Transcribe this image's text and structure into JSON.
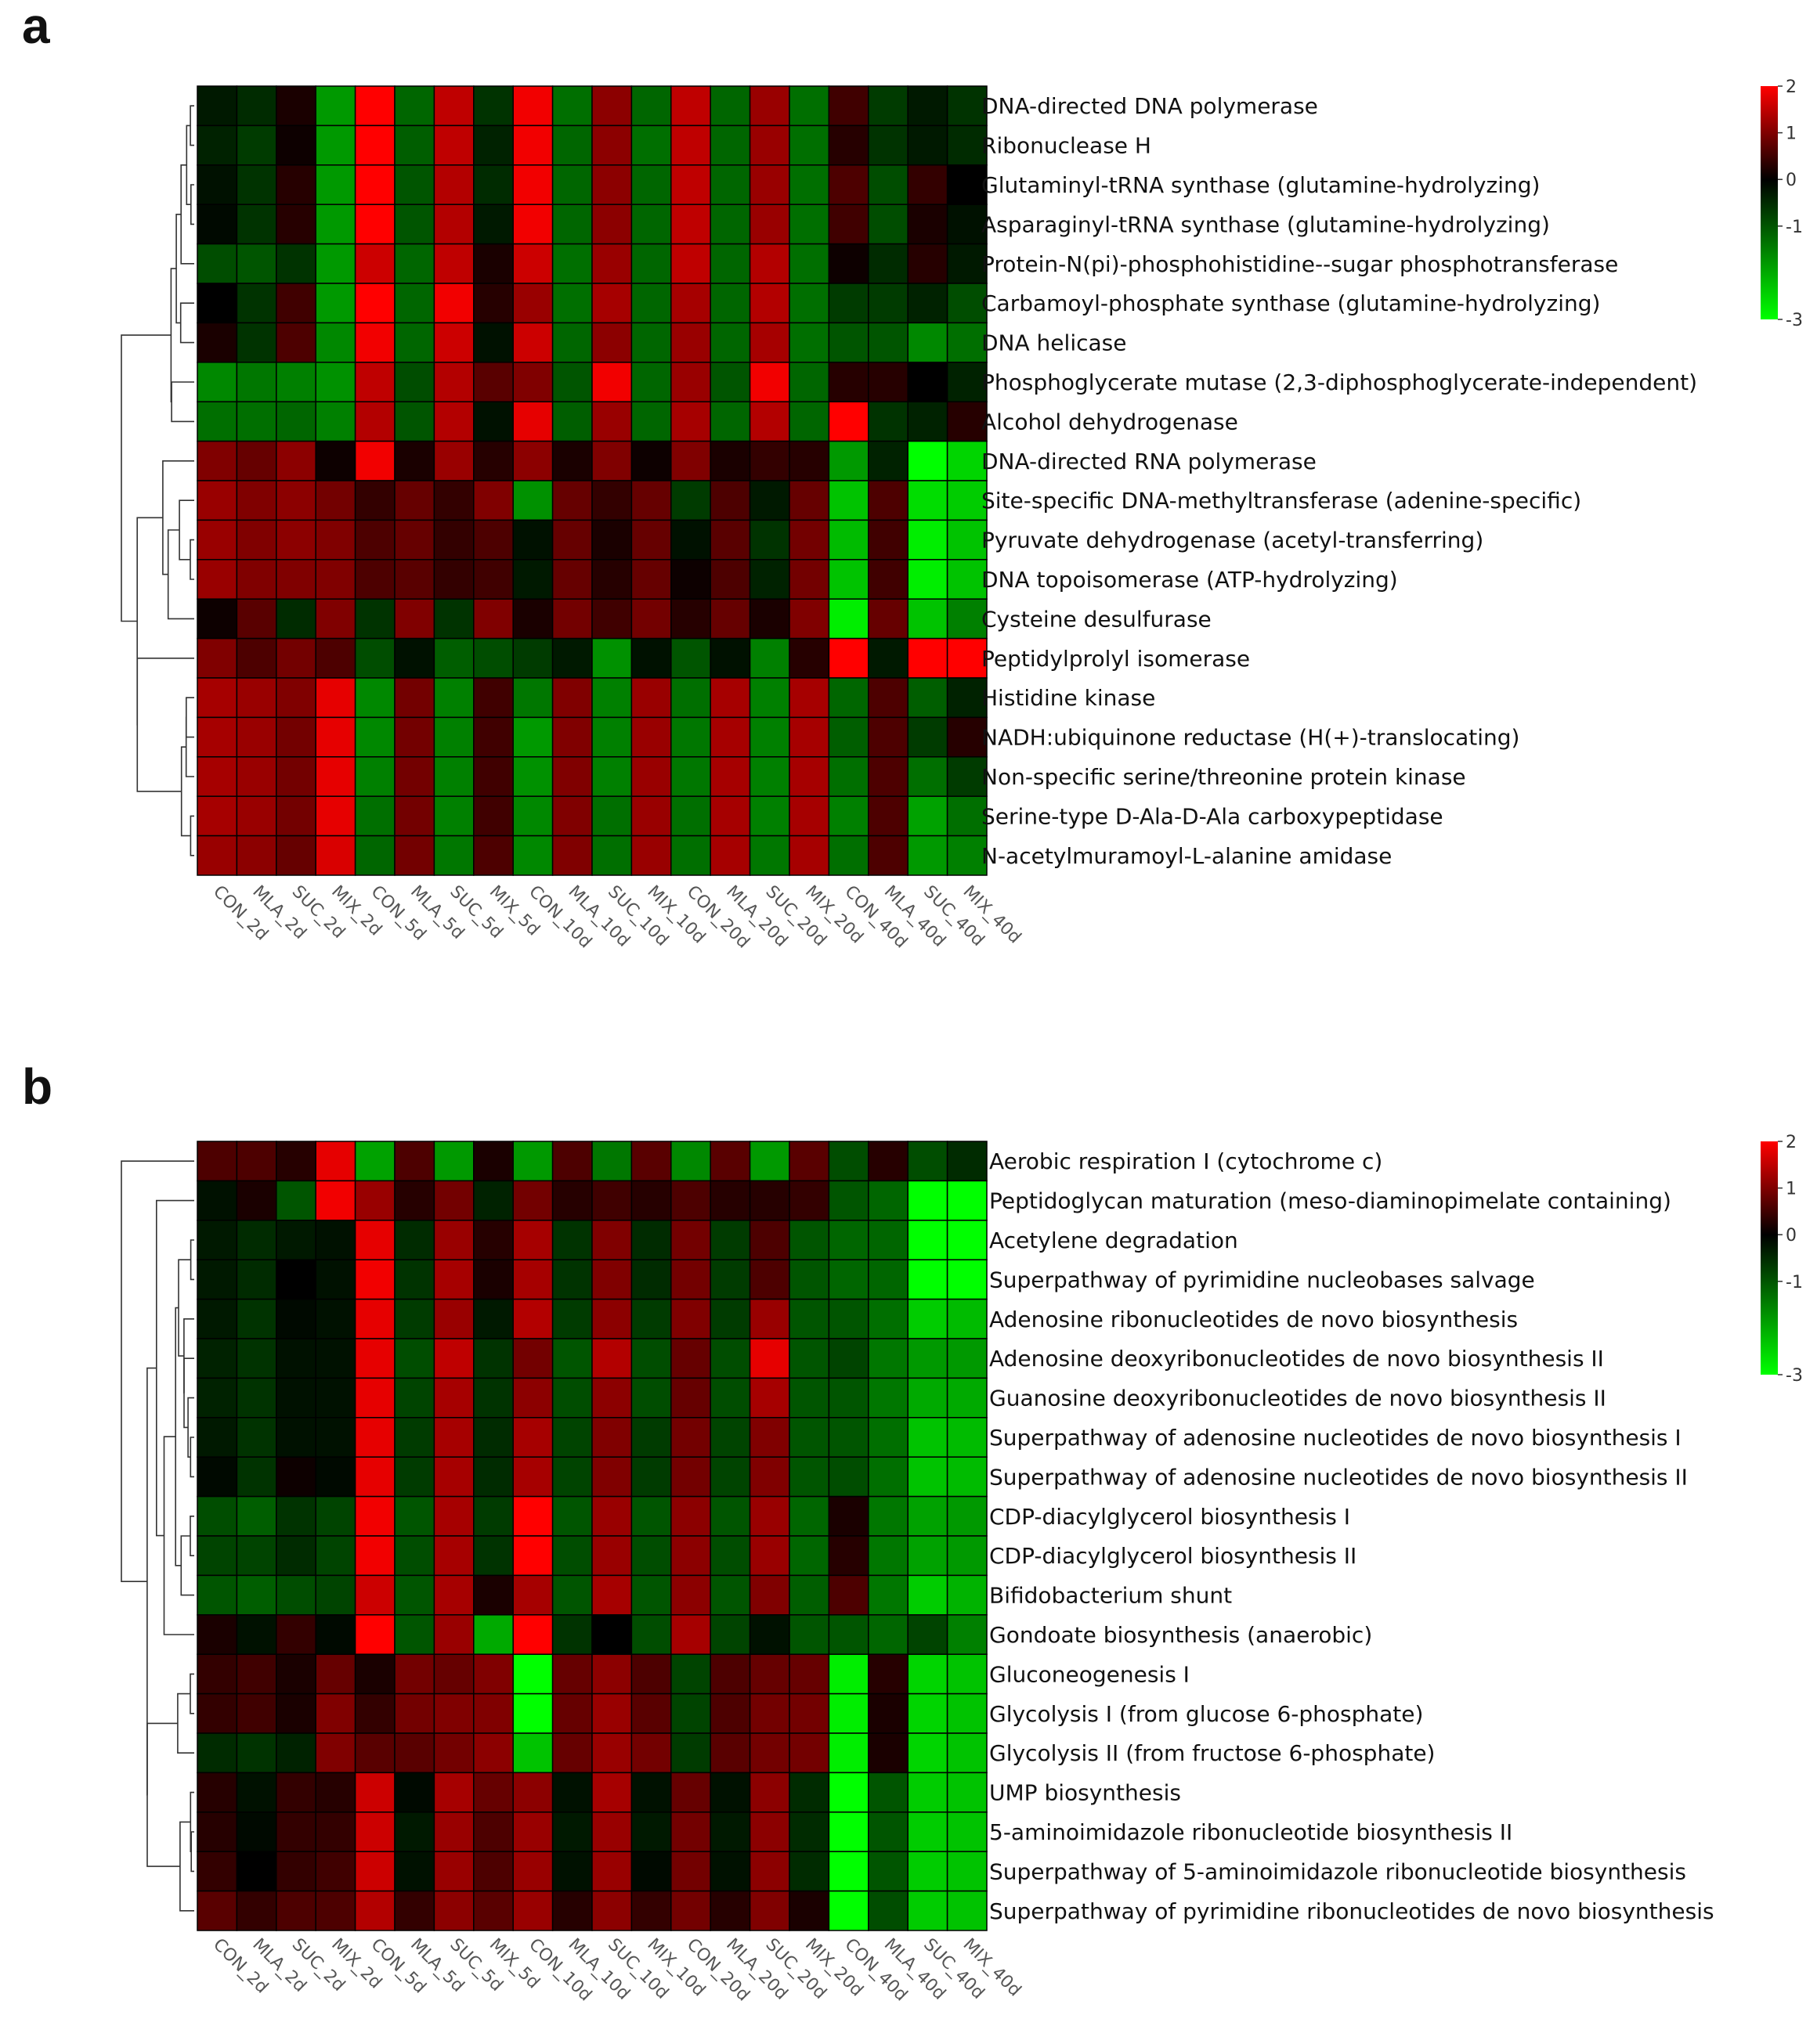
{
  "chart_data": [
    {
      "panel": "a",
      "type": "heatmap",
      "color_scale": {
        "min": -3,
        "max": 2,
        "ticks": [
          2,
          1,
          0,
          -1,
          -3
        ],
        "colors": {
          "low": "#00ff00",
          "mid": "#000000",
          "high": "#ff0000"
        }
      },
      "columns": [
        "CON_2d",
        "MLA_2d",
        "SUC_2d",
        "MIX_2d",
        "CON_5d",
        "MLA_5d",
        "SUC_5d",
        "MIX_5d",
        "CON_10d",
        "MLA_10d",
        "SUC_10d",
        "MIX_10d",
        "CON_20d",
        "MLA_20d",
        "SUC_20d",
        "MIX_20d",
        "CON_40d",
        "MLA_40d",
        "SUC_40d",
        "MIX_40d"
      ],
      "rows": [
        "DNA-directed DNA polymerase",
        "Ribonuclease H",
        "Glutaminyl-tRNA synthase (glutamine-hydrolyzing)",
        "Asparaginyl-tRNA synthase (glutamine-hydrolyzing)",
        "Protein-N(pi)-phosphohistidine--sugar phosphotransferase",
        "Carbamoyl-phosphate synthase (glutamine-hydrolyzing)",
        "DNA helicase",
        "Phosphoglycerate mutase (2,3-diphosphoglycerate-independent)",
        "Alcohol dehydrogenase",
        "DNA-directed RNA polymerase",
        "Site-specific DNA-methyltransferase (adenine-specific)",
        "Pyruvate dehydrogenase (acetyl-transferring)",
        "DNA topoisomerase (ATP-hydrolyzing)",
        "Cysteine desulfurase",
        "Peptidylprolyl isomerase",
        "Histidine kinase",
        "NADH:ubiquinone reductase (H(+)-translocating)",
        "Non-specific serine/threonine protein kinase",
        "Serine-type D-Ala-D-Ala carboxypeptidase",
        "N-acetylmuramoyl-L-alanine amidase"
      ],
      "values": [
        [
          -0.3,
          -0.5,
          0.2,
          -1.8,
          2.0,
          -1.2,
          1.5,
          -0.6,
          1.9,
          -1.3,
          1.1,
          -1.2,
          1.5,
          -1.2,
          1.2,
          -1.3,
          0.5,
          -0.7,
          -0.3,
          -0.6
        ],
        [
          -0.4,
          -0.7,
          0.1,
          -1.8,
          2.0,
          -1.1,
          1.5,
          -0.4,
          1.9,
          -1.2,
          1.1,
          -1.3,
          1.5,
          -1.2,
          1.2,
          -1.3,
          0.3,
          -0.6,
          -0.3,
          -0.5
        ],
        [
          -0.2,
          -0.6,
          0.3,
          -1.8,
          2.0,
          -1.0,
          1.4,
          -0.5,
          1.9,
          -1.2,
          1.1,
          -1.2,
          1.5,
          -1.2,
          1.2,
          -1.3,
          0.6,
          -0.9,
          0.4,
          0.0
        ],
        [
          -0.1,
          -0.6,
          0.3,
          -1.8,
          2.0,
          -1.0,
          1.4,
          -0.3,
          1.9,
          -1.2,
          1.1,
          -1.2,
          1.5,
          -1.2,
          1.2,
          -1.3,
          0.5,
          -0.9,
          0.2,
          -0.2
        ],
        [
          -0.9,
          -1.0,
          -0.6,
          -1.8,
          1.6,
          -1.2,
          1.5,
          0.2,
          1.6,
          -1.3,
          1.2,
          -1.2,
          1.5,
          -1.2,
          1.4,
          -1.3,
          0.1,
          -0.5,
          0.3,
          -0.3
        ],
        [
          0.0,
          -0.6,
          0.5,
          -1.8,
          2.0,
          -1.2,
          1.9,
          0.3,
          1.2,
          -1.3,
          1.3,
          -1.2,
          1.3,
          -1.2,
          1.4,
          -1.3,
          -0.7,
          -0.7,
          -0.4,
          -0.9
        ],
        [
          0.2,
          -0.6,
          0.6,
          -1.6,
          1.9,
          -1.2,
          1.6,
          -0.2,
          1.6,
          -1.2,
          1.1,
          -1.2,
          1.2,
          -1.2,
          1.3,
          -1.3,
          -1.0,
          -1.0,
          -1.6,
          -1.3
        ],
        [
          -1.6,
          -1.4,
          -1.5,
          -1.7,
          1.5,
          -0.9,
          1.4,
          0.7,
          1.0,
          -1.0,
          1.9,
          -1.2,
          1.2,
          -1.0,
          1.9,
          -1.2,
          0.3,
          0.3,
          0.0,
          -0.4
        ],
        [
          -1.3,
          -1.3,
          -1.2,
          -1.5,
          1.4,
          -1.0,
          1.4,
          -0.2,
          1.8,
          -1.1,
          1.2,
          -1.2,
          1.3,
          -1.2,
          1.4,
          -1.2,
          2.0,
          -0.6,
          -0.4,
          0.3
        ],
        [
          1.0,
          0.8,
          1.1,
          0.1,
          1.9,
          0.2,
          1.2,
          0.3,
          1.1,
          0.2,
          1.0,
          0.1,
          1.0,
          0.2,
          0.4,
          0.3,
          -1.8,
          -0.4,
          -3.0,
          -2.5
        ],
        [
          1.2,
          1.0,
          1.1,
          0.9,
          0.4,
          0.8,
          0.4,
          1.0,
          -1.7,
          0.8,
          0.4,
          0.8,
          -0.7,
          0.6,
          -0.3,
          0.8,
          -2.3,
          0.6,
          -2.6,
          -2.4
        ],
        [
          1.2,
          1.0,
          1.1,
          1.0,
          0.6,
          0.8,
          0.4,
          0.6,
          -0.2,
          0.8,
          0.2,
          0.8,
          -0.2,
          0.7,
          -0.6,
          0.9,
          -2.2,
          0.5,
          -2.8,
          -2.3
        ],
        [
          1.2,
          1.0,
          1.0,
          1.0,
          0.6,
          0.7,
          0.4,
          0.5,
          -0.3,
          0.8,
          0.3,
          0.8,
          0.1,
          0.6,
          -0.4,
          0.9,
          -2.3,
          0.5,
          -2.8,
          -2.3
        ],
        [
          0.1,
          0.7,
          -0.5,
          1.0,
          -0.6,
          1.0,
          -0.6,
          1.0,
          0.2,
          0.9,
          0.5,
          0.9,
          0.3,
          0.8,
          0.2,
          1.0,
          -2.8,
          0.8,
          -2.3,
          -1.5
        ],
        [
          1.0,
          0.6,
          0.9,
          0.6,
          -0.9,
          -0.2,
          -1.1,
          -0.9,
          -0.7,
          -0.3,
          -1.7,
          -0.2,
          -1.0,
          -0.2,
          -1.5,
          0.3,
          2.0,
          -0.3,
          2.0,
          2.0
        ],
        [
          1.3,
          1.2,
          1.0,
          1.8,
          -1.6,
          0.9,
          -1.5,
          0.5,
          -1.4,
          1.0,
          -1.5,
          1.2,
          -1.3,
          1.3,
          -1.5,
          1.3,
          -1.2,
          0.6,
          -1.1,
          -0.4
        ],
        [
          1.3,
          1.2,
          0.9,
          1.8,
          -1.6,
          0.9,
          -1.5,
          0.5,
          -1.8,
          1.0,
          -1.5,
          1.2,
          -1.4,
          1.3,
          -1.5,
          1.3,
          -1.1,
          0.6,
          -0.7,
          0.3
        ],
        [
          1.3,
          1.2,
          0.9,
          1.8,
          -1.5,
          0.9,
          -1.5,
          0.5,
          -1.7,
          1.0,
          -1.5,
          1.2,
          -1.4,
          1.3,
          -1.5,
          1.3,
          -1.3,
          0.6,
          -1.3,
          -0.7
        ],
        [
          1.3,
          1.2,
          0.9,
          1.8,
          -1.3,
          0.9,
          -1.5,
          0.5,
          -1.6,
          1.0,
          -1.3,
          1.2,
          -1.3,
          1.3,
          -1.5,
          1.3,
          -1.5,
          0.6,
          -1.9,
          -1.3
        ],
        [
          1.2,
          1.1,
          0.8,
          1.7,
          -1.2,
          0.9,
          -1.4,
          0.6,
          -1.6,
          1.0,
          -1.3,
          1.2,
          -1.3,
          1.3,
          -1.4,
          1.3,
          -1.3,
          0.6,
          -1.8,
          -1.5
        ]
      ]
    },
    {
      "panel": "b",
      "type": "heatmap",
      "color_scale": {
        "min": -3,
        "max": 2,
        "ticks": [
          2,
          1,
          0,
          -1,
          -3
        ],
        "colors": {
          "low": "#00ff00",
          "mid": "#000000",
          "high": "#ff0000"
        }
      },
      "columns": [
        "CON_2d",
        "MLA_2d",
        "SUC_2d",
        "MIX_2d",
        "CON_5d",
        "MLA_5d",
        "SUC_5d",
        "MIX_5d",
        "CON_10d",
        "MLA_10d",
        "SUC_10d",
        "MIX_10d",
        "CON_20d",
        "MLA_20d",
        "SUC_20d",
        "MIX_20d",
        "CON_40d",
        "MLA_40d",
        "SUC_40d",
        "MIX_40d"
      ],
      "rows": [
        "Aerobic respiration I (cytochrome c)",
        "Peptidoglycan maturation (meso-diaminopimelate containing)",
        "Acetylene degradation",
        "Superpathway of pyrimidine nucleobases salvage",
        "Adenosine ribonucleotides de novo biosynthesis",
        "Adenosine deoxyribonucleotides de novo biosynthesis II",
        "Guanosine deoxyribonucleotides de novo biosynthesis II",
        "Superpathway of adenosine nucleotides de novo biosynthesis I",
        "Superpathway of adenosine nucleotides de novo biosynthesis II",
        "CDP-diacylglycerol biosynthesis I",
        "CDP-diacylglycerol biosynthesis II",
        "Bifidobacterium shunt",
        "Gondoate biosynthesis (anaerobic)",
        "Gluconeogenesis I",
        "Glycolysis I (from glucose 6-phosphate)",
        "Glycolysis II (from fructose 6-phosphate)",
        "UMP biosynthesis",
        "5-aminoimidazole ribonucleotide biosynthesis II",
        "Superpathway of 5-aminoimidazole ribonucleotide biosynthesis",
        "Superpathway of pyrimidine ribonucleotides de novo biosynthesis"
      ],
      "values": [
        [
          0.6,
          0.6,
          0.3,
          1.8,
          -1.9,
          0.6,
          -1.8,
          0.2,
          -1.8,
          0.6,
          -1.4,
          0.7,
          -1.6,
          0.7,
          -1.8,
          0.7,
          -0.9,
          0.3,
          -0.9,
          -0.5
        ],
        [
          -0.2,
          0.2,
          -1.0,
          1.9,
          1.2,
          0.3,
          0.9,
          -0.4,
          0.9,
          0.3,
          0.5,
          0.3,
          0.6,
          0.3,
          0.3,
          0.4,
          -1.0,
          -1.2,
          -3.0,
          -3.0
        ],
        [
          -0.3,
          -0.5,
          -0.3,
          -0.2,
          1.8,
          -0.5,
          1.2,
          0.3,
          1.3,
          -0.6,
          1.0,
          -0.5,
          0.9,
          -0.7,
          0.6,
          -1.0,
          -1.2,
          -1.2,
          -3.0,
          -3.0
        ],
        [
          -0.3,
          -0.5,
          0.0,
          -0.2,
          1.9,
          -0.6,
          1.3,
          0.2,
          1.3,
          -0.6,
          1.0,
          -0.5,
          0.9,
          -0.7,
          0.6,
          -1.0,
          -1.2,
          -1.2,
          -3.0,
          -3.0
        ],
        [
          -0.3,
          -0.6,
          -0.1,
          -0.2,
          1.8,
          -0.7,
          1.2,
          -0.3,
          1.4,
          -0.7,
          1.1,
          -0.7,
          1.0,
          -0.7,
          1.2,
          -1.0,
          -1.0,
          -1.3,
          -2.4,
          -2.2
        ],
        [
          -0.4,
          -0.6,
          -0.2,
          -0.2,
          1.8,
          -0.9,
          1.5,
          -0.6,
          0.9,
          -1.0,
          1.4,
          -0.9,
          0.8,
          -0.9,
          1.8,
          -1.0,
          -0.8,
          -1.4,
          -1.8,
          -1.8
        ],
        [
          -0.4,
          -0.6,
          -0.2,
          -0.2,
          1.8,
          -0.8,
          1.3,
          -0.6,
          1.1,
          -0.9,
          1.1,
          -0.9,
          0.8,
          -0.9,
          1.3,
          -1.0,
          -1.0,
          -1.4,
          -2.0,
          -2.0
        ],
        [
          -0.3,
          -0.6,
          -0.2,
          -0.2,
          1.8,
          -0.7,
          1.3,
          -0.5,
          1.3,
          -0.8,
          1.0,
          -0.7,
          0.9,
          -0.8,
          1.0,
          -1.0,
          -1.0,
          -1.3,
          -2.3,
          -2.2
        ],
        [
          -0.1,
          -0.6,
          0.1,
          -0.1,
          1.8,
          -0.7,
          1.3,
          -0.5,
          1.3,
          -0.8,
          1.0,
          -0.7,
          0.9,
          -0.8,
          1.0,
          -1.0,
          -0.9,
          -1.3,
          -2.3,
          -2.2
        ],
        [
          -0.9,
          -1.1,
          -0.6,
          -0.8,
          1.9,
          -1.0,
          1.3,
          -0.7,
          2.0,
          -1.0,
          1.2,
          -1.0,
          1.1,
          -1.0,
          1.2,
          -1.2,
          0.2,
          -1.4,
          -1.9,
          -1.8
        ],
        [
          -0.8,
          -0.8,
          -0.5,
          -0.8,
          1.9,
          -0.9,
          1.3,
          -0.6,
          2.0,
          -0.9,
          1.2,
          -0.9,
          1.1,
          -0.9,
          1.2,
          -1.2,
          0.3,
          -1.4,
          -1.9,
          -1.8
        ],
        [
          -1.0,
          -1.1,
          -0.9,
          -0.8,
          1.6,
          -1.0,
          1.3,
          0.2,
          1.3,
          -1.0,
          1.3,
          -1.0,
          1.1,
          -1.0,
          1.0,
          -1.1,
          0.6,
          -1.4,
          -2.4,
          -2.1
        ],
        [
          0.2,
          -0.2,
          0.4,
          -0.1,
          2.0,
          -1.0,
          1.2,
          -2.0,
          2.0,
          -0.6,
          0.0,
          -0.9,
          1.3,
          -0.8,
          -0.2,
          -1.0,
          -1.0,
          -1.2,
          -0.8,
          -1.5
        ],
        [
          0.4,
          0.5,
          0.2,
          0.8,
          0.2,
          0.9,
          0.8,
          1.0,
          -3.0,
          0.8,
          1.1,
          0.6,
          -0.8,
          0.6,
          0.8,
          0.8,
          -2.8,
          0.3,
          -2.5,
          -2.3
        ],
        [
          0.4,
          0.5,
          0.2,
          1.0,
          0.4,
          0.9,
          1.0,
          1.0,
          -3.0,
          0.8,
          1.2,
          0.7,
          -0.8,
          0.6,
          0.9,
          0.9,
          -2.8,
          0.2,
          -2.5,
          -2.3
        ],
        [
          -0.5,
          -0.6,
          -0.4,
          1.0,
          0.7,
          0.7,
          0.9,
          1.1,
          -2.3,
          0.8,
          1.2,
          0.9,
          -0.7,
          0.7,
          0.9,
          0.9,
          -2.8,
          0.2,
          -2.5,
          -2.3
        ],
        [
          0.3,
          -0.2,
          0.4,
          0.3,
          1.6,
          -0.1,
          1.3,
          0.8,
          1.1,
          -0.2,
          1.3,
          -0.2,
          0.8,
          -0.2,
          1.1,
          -0.5,
          -3.0,
          -1.0,
          -2.4,
          -2.3
        ],
        [
          0.3,
          -0.1,
          0.4,
          0.4,
          1.6,
          -0.3,
          1.2,
          0.6,
          1.2,
          -0.3,
          1.2,
          -0.3,
          0.9,
          -0.3,
          1.1,
          -0.5,
          -3.0,
          -1.0,
          -2.4,
          -2.3
        ],
        [
          0.4,
          0.0,
          0.4,
          0.5,
          1.6,
          -0.2,
          1.2,
          0.6,
          1.2,
          -0.2,
          1.2,
          -0.1,
          0.9,
          -0.2,
          1.1,
          -0.5,
          -3.0,
          -1.0,
          -2.4,
          -2.3
        ],
        [
          0.7,
          0.4,
          0.6,
          0.6,
          1.4,
          0.4,
          1.1,
          0.7,
          1.2,
          0.3,
          1.1,
          0.4,
          0.9,
          0.3,
          1.0,
          0.2,
          -3.0,
          -0.9,
          -2.4,
          -2.3
        ]
      ]
    }
  ]
}
